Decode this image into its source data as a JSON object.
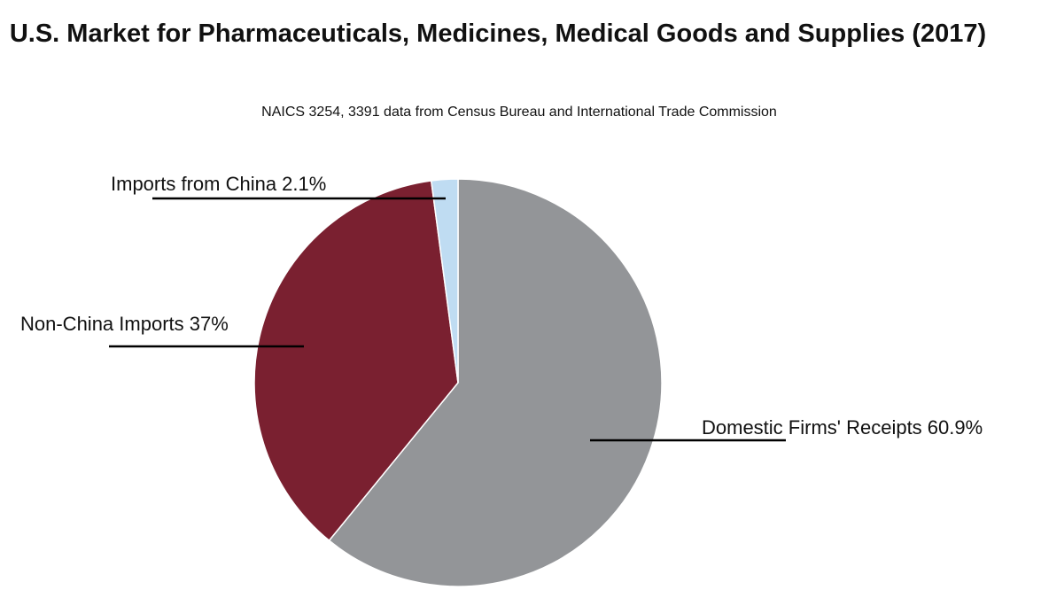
{
  "chart_data": {
    "type": "pie",
    "title": "U.S. Market for Pharmaceuticals, Medicines, Medical Goods and Supplies (2017)",
    "subtitle": "NAICS 3254, 3391 data from Census Bureau and International Trade Commission",
    "slices": [
      {
        "label": "Domestic Firms' Receipts 60.9%",
        "value": 60.9,
        "color": "#939598"
      },
      {
        "label": "Non-China Imports 37%",
        "value": 37.0,
        "color": "#7a2030"
      },
      {
        "label": "Imports from China 2.1%",
        "value": 2.1,
        "color": "#bfdcf2"
      }
    ]
  }
}
